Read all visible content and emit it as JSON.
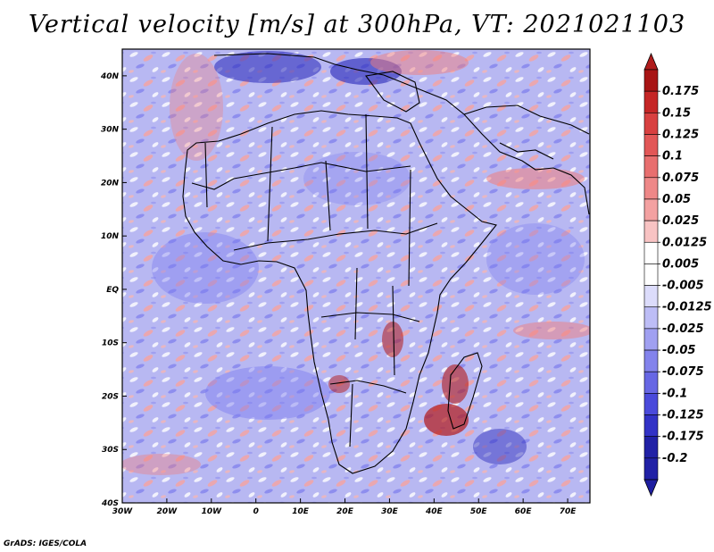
{
  "title": "Vertical velocity [m/s] at 300hPa, VT: 2021021103",
  "credit": "GrADS: IGES/COLA",
  "colors": {
    "strong_positive": "#b31919",
    "positive": "#f07d7d",
    "neutral": "#ffffff",
    "negative": "#7b7bf0",
    "strong_negative": "#2424b8",
    "coastline": "#000000"
  },
  "map": {
    "lon_range": [
      -30,
      75
    ],
    "lat_range": [
      -40,
      45
    ],
    "lat_labels": [
      "40N",
      "30N",
      "20N",
      "10N",
      "EQ",
      "10S",
      "20S",
      "30S",
      "40S"
    ],
    "lon_labels": [
      "30W",
      "20W",
      "10W",
      "0",
      "10E",
      "20E",
      "30E",
      "40E",
      "50E",
      "60E",
      "70E"
    ]
  },
  "colorbar": {
    "levels": [
      "0.175",
      "0.15",
      "0.125",
      "0.1",
      "0.075",
      "0.05",
      "0.025",
      "0.0125",
      "0.005",
      "-0.005",
      "-0.0125",
      "-0.025",
      "-0.05",
      "-0.075",
      "-0.1",
      "-0.125",
      "-0.175",
      "-0.2"
    ],
    "colors": [
      "#a81515",
      "#c52626",
      "#d84040",
      "#e25757",
      "#e86f6f",
      "#ee8888",
      "#f3a1a1",
      "#f8c3c3",
      "#ffffff",
      "#ffffff",
      "#dcdcfb",
      "#bdbdf6",
      "#a0a0f1",
      "#8383ec",
      "#6767e4",
      "#4a4adb",
      "#3232c6",
      "#2121a6"
    ],
    "top_color": "#b01c1c",
    "bottom_color": "#1e1ea0"
  }
}
